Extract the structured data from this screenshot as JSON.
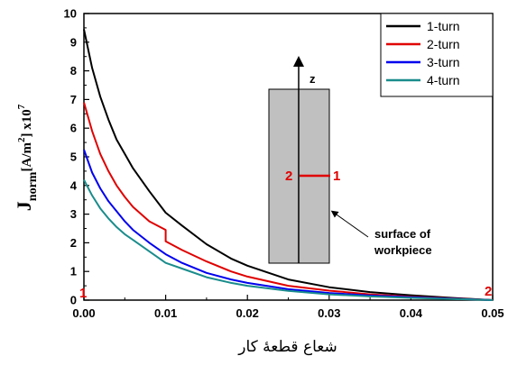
{
  "chart_data": {
    "type": "line",
    "xlabel": "شعاع قطعهٔ کار",
    "ylabel": {
      "main": "J",
      "sub": "norm",
      "unit_pre": "[A/m",
      "unit_sup": "2",
      "unit_post": "] x10",
      "exp": "7"
    },
    "xlim": [
      0,
      0.05
    ],
    "ylim": [
      0,
      10
    ],
    "x_ticks": [
      "0.00",
      "0.01",
      "0.02",
      "0.03",
      "0.04",
      "0.05"
    ],
    "y_ticks": [
      "0",
      "1",
      "2",
      "3",
      "4",
      "5",
      "6",
      "7",
      "8",
      "9",
      "10"
    ],
    "legend_position": "top-right",
    "grid": false,
    "series": [
      {
        "name": "1-turn",
        "color": "#000000",
        "x": [
          0,
          0.001,
          0.002,
          0.003,
          0.004,
          0.005,
          0.006,
          0.008,
          0.01,
          0.012,
          0.015,
          0.018,
          0.02,
          0.025,
          0.03,
          0.035,
          0.04,
          0.045,
          0.05
        ],
        "y": [
          9.45,
          8.1,
          7.1,
          6.3,
          5.6,
          5.1,
          4.6,
          3.8,
          3.05,
          2.6,
          1.95,
          1.45,
          1.2,
          0.72,
          0.45,
          0.28,
          0.17,
          0.08,
          0.0
        ]
      },
      {
        "name": "2-turn",
        "color": "#e00000",
        "x": [
          0,
          0.001,
          0.002,
          0.003,
          0.004,
          0.005,
          0.006,
          0.008,
          0.01,
          0.01,
          0.012,
          0.015,
          0.018,
          0.02,
          0.025,
          0.03,
          0.035,
          0.04,
          0.045,
          0.05
        ],
        "y": [
          6.9,
          5.9,
          5.1,
          4.5,
          4.0,
          3.6,
          3.25,
          2.75,
          2.45,
          2.05,
          1.75,
          1.35,
          1.0,
          0.82,
          0.5,
          0.33,
          0.2,
          0.12,
          0.06,
          0.0
        ]
      },
      {
        "name": "3-turn",
        "color": "#0000ee",
        "x": [
          0,
          0.001,
          0.002,
          0.003,
          0.004,
          0.005,
          0.006,
          0.008,
          0.01,
          0.012,
          0.015,
          0.018,
          0.02,
          0.025,
          0.03,
          0.035,
          0.04,
          0.045,
          0.05
        ],
        "y": [
          5.25,
          4.45,
          3.9,
          3.45,
          3.1,
          2.75,
          2.45,
          2.0,
          1.6,
          1.3,
          0.95,
          0.72,
          0.6,
          0.38,
          0.25,
          0.16,
          0.1,
          0.05,
          0.0
        ]
      },
      {
        "name": "4-turn",
        "color": "#1a8c8c",
        "x": [
          0,
          0.001,
          0.002,
          0.003,
          0.004,
          0.005,
          0.006,
          0.008,
          0.01,
          0.012,
          0.015,
          0.018,
          0.02,
          0.025,
          0.03,
          0.035,
          0.04,
          0.045,
          0.05
        ],
        "y": [
          4.2,
          3.65,
          3.2,
          2.85,
          2.55,
          2.3,
          2.1,
          1.7,
          1.3,
          1.1,
          0.8,
          0.6,
          0.5,
          0.32,
          0.2,
          0.13,
          0.08,
          0.04,
          0.0
        ]
      }
    ],
    "inset": {
      "axis_label": "z",
      "left_label": "2",
      "right_label": "1",
      "annotation_line1": "surface of",
      "annotation_line2": "workpiece",
      "fill_color": "#c0c0c0"
    },
    "corner_labels": {
      "left": "1",
      "right": "2"
    }
  }
}
